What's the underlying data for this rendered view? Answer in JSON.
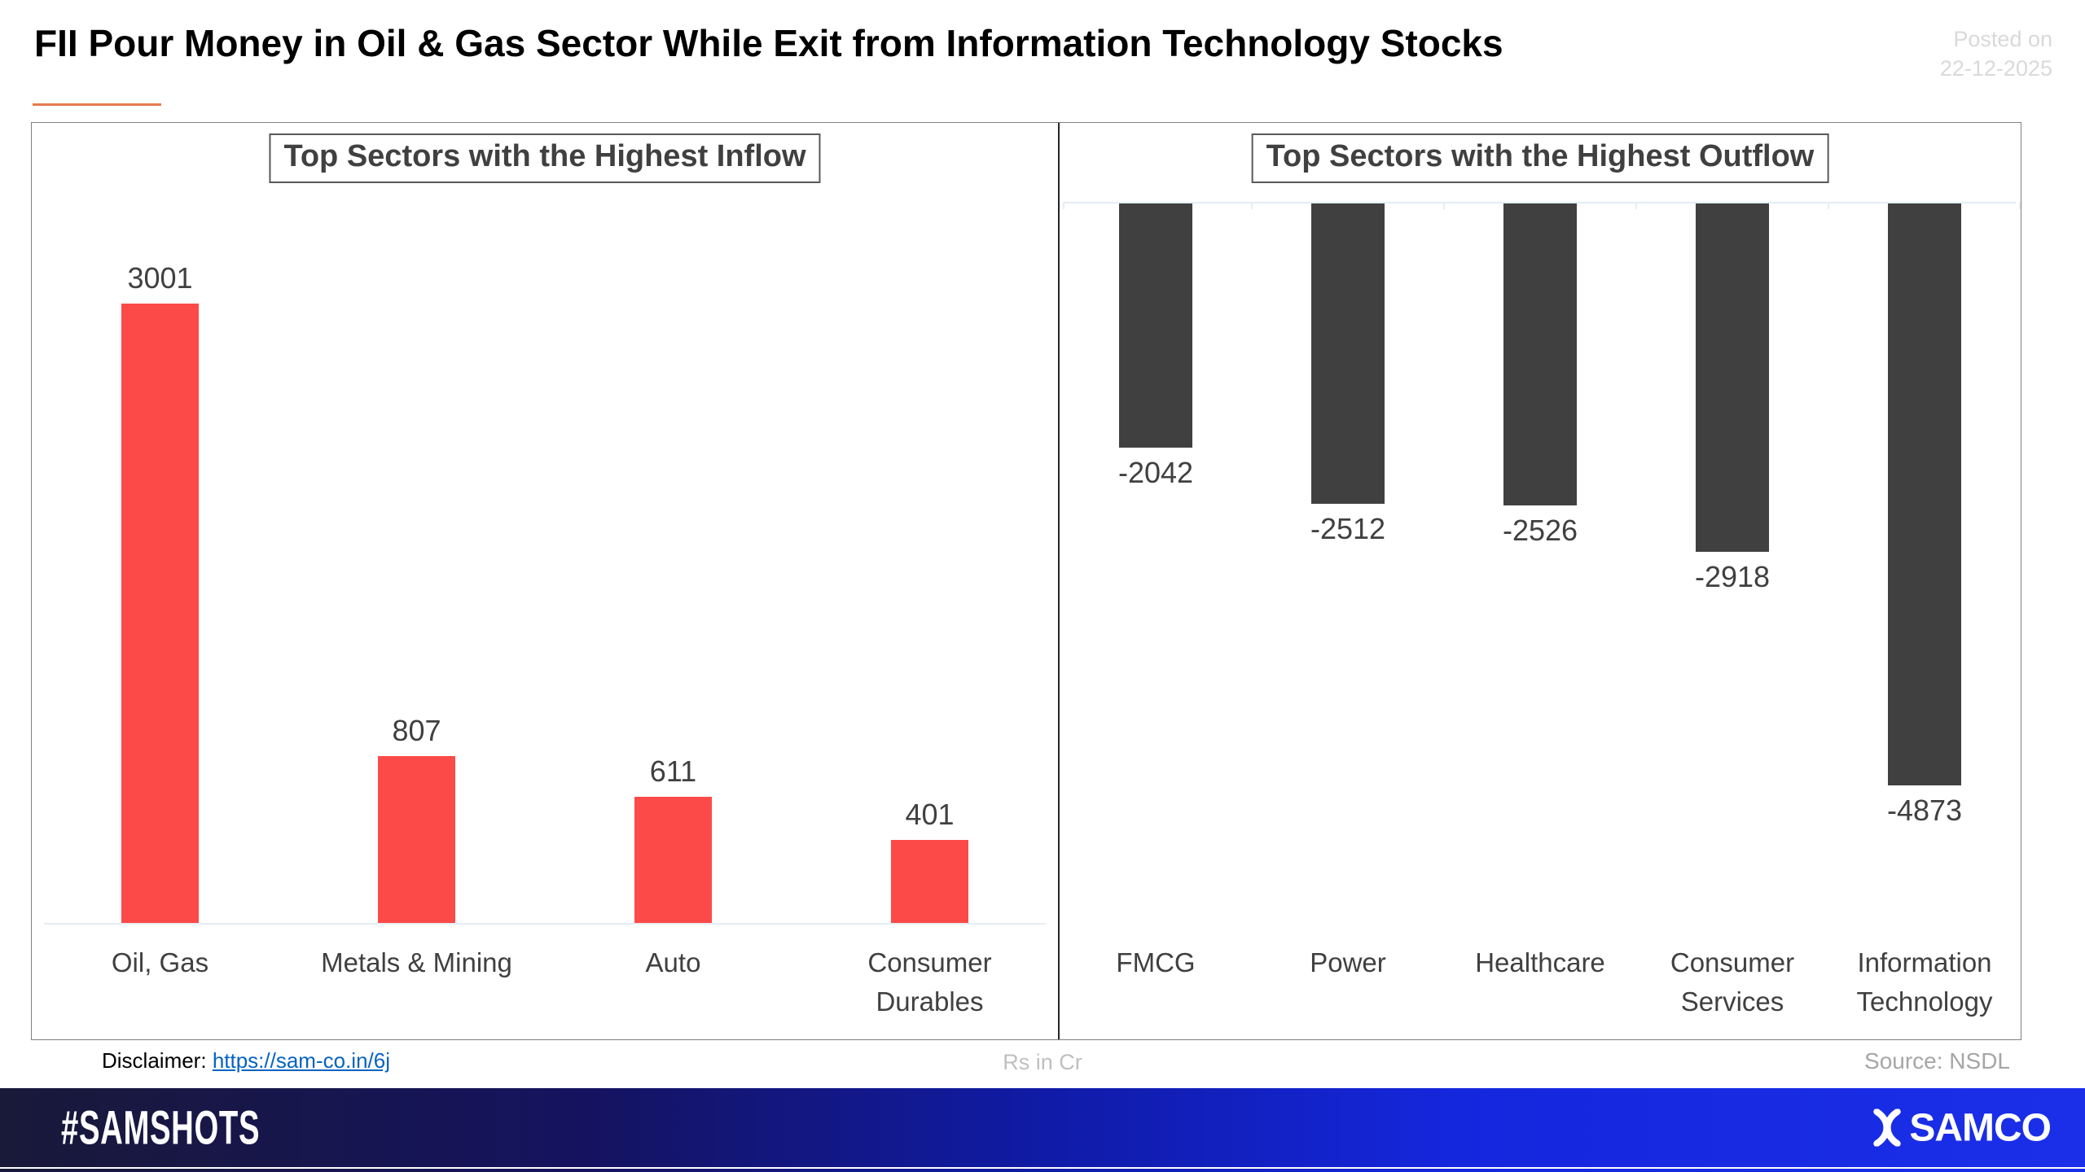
{
  "header": {
    "title": "FII Pour Money in Oil & Gas Sector While Exit from Information Technology Stocks",
    "posted_on_line1": "Posted on",
    "posted_on_line2": "22-12-2025"
  },
  "chart_data": [
    {
      "type": "bar",
      "title": "Top Sectors with the Highest Inflow",
      "categories": [
        "Oil, Gas",
        "Metals & Mining",
        "Auto",
        "Consumer Durables"
      ],
      "values": [
        3001,
        807,
        611,
        401
      ],
      "bar_color": "#fb4a47",
      "value_labels": [
        "3001",
        "807",
        "611",
        "401"
      ],
      "value_label_position": "above-bar",
      "ylim": [
        0,
        3001
      ],
      "grid": "off",
      "legend": "none",
      "unit": "Rs in Cr"
    },
    {
      "type": "bar",
      "title": "Top Sectors with the Highest Outflow",
      "categories": [
        "FMCG",
        "Power",
        "Healthcare",
        "Consumer Services",
        "Information Technology"
      ],
      "values": [
        -2042,
        -2512,
        -2526,
        -2918,
        -4873
      ],
      "bar_color": "#404040",
      "value_labels": [
        "-2042",
        "-2512",
        "-2526",
        "-2918",
        "-4873"
      ],
      "value_label_position": "below-bar",
      "ylim": [
        -4873,
        0
      ],
      "grid": "off",
      "legend": "none",
      "unit": "Rs in Cr"
    }
  ],
  "footer": {
    "disclaimer_label": "Disclaimer:",
    "disclaimer_link": "https://sam-co.in/6j",
    "unit_note": "Rs in Cr",
    "source": "Source: NSDL"
  },
  "brandbar": {
    "hashtag": "#SAMSHOTS",
    "brand": "SAMCO"
  },
  "colors": {
    "inflow_bar": "#fb4a47",
    "outflow_bar": "#404040",
    "title_accent": "#e8794e",
    "posted_on": "#d9d9d9",
    "link": "#0563c1",
    "brand_gradient_start": "#191939",
    "brand_gradient_end": "#1b2fe9"
  }
}
